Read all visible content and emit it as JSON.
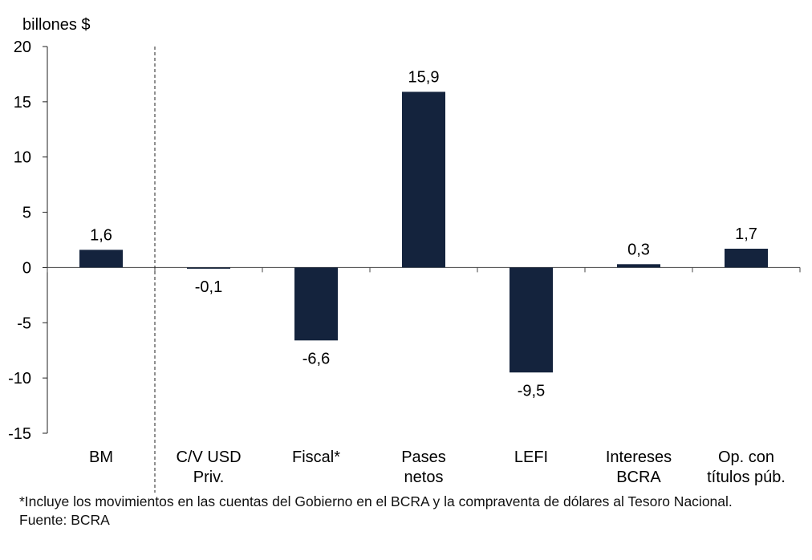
{
  "chart_data": {
    "type": "bar",
    "ylabel": "billones $",
    "ylim": [
      -15,
      20
    ],
    "yticks": [
      20,
      15,
      10,
      5,
      0,
      -5,
      -10,
      -15
    ],
    "categories": [
      [
        "BM"
      ],
      [
        "C/V USD",
        "Priv."
      ],
      [
        "Fiscal*"
      ],
      [
        "Pases",
        "netos"
      ],
      [
        "LEFI"
      ],
      [
        "Intereses",
        "BCRA"
      ],
      [
        "Op. con",
        "títulos púb."
      ]
    ],
    "values": [
      1.6,
      -0.1,
      -6.6,
      15.9,
      -9.5,
      0.3,
      1.7
    ],
    "value_labels": [
      "1,6",
      "-0,1",
      "-6,6",
      "15,9",
      "-9,5",
      "0,3",
      "1,7"
    ],
    "bar_color": "#14233d",
    "grid": false,
    "divider_after_category": 0
  },
  "footnote": "*Incluye los movimientos en las cuentas del Gobierno en el BCRA y la compraventa de dólares al Tesoro Nacional.",
  "source": "Fuente: BCRA"
}
